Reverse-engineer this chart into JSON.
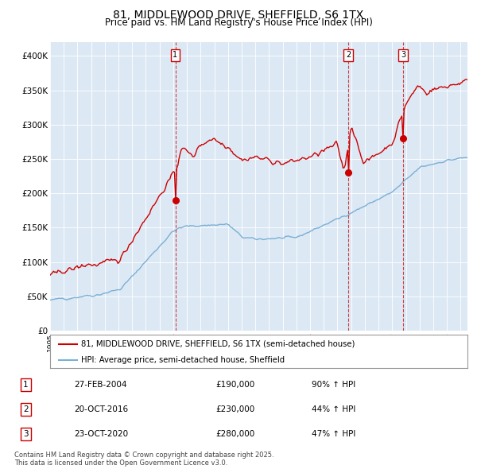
{
  "title": "81, MIDDLEWOOD DRIVE, SHEFFIELD, S6 1TX",
  "subtitle": "Price paid vs. HM Land Registry's House Price Index (HPI)",
  "title_fontsize": 10,
  "subtitle_fontsize": 8.5,
  "plot_bg_color": "#dce9f5",
  "red_line_color": "#cc0000",
  "blue_line_color": "#7bafd4",
  "ylim": [
    0,
    420000
  ],
  "yticks": [
    0,
    50000,
    100000,
    150000,
    200000,
    250000,
    300000,
    350000,
    400000
  ],
  "ytick_labels": [
    "£0",
    "£50K",
    "£100K",
    "£150K",
    "£200K",
    "£250K",
    "£300K",
    "£350K",
    "£400K"
  ],
  "transactions": [
    {
      "label": "1",
      "date": "27-FEB-2004",
      "price": 190000,
      "pct": "90%",
      "x_year": 2004.15
    },
    {
      "label": "2",
      "date": "20-OCT-2016",
      "price": 230000,
      "pct": "44%",
      "x_year": 2016.8
    },
    {
      "label": "3",
      "date": "23-OCT-2020",
      "price": 280000,
      "pct": "47%",
      "x_year": 2020.8
    }
  ],
  "legend_label_red": "81, MIDDLEWOOD DRIVE, SHEFFIELD, S6 1TX (semi-detached house)",
  "legend_label_blue": "HPI: Average price, semi-detached house, Sheffield",
  "footer": "Contains HM Land Registry data © Crown copyright and database right 2025.\nThis data is licensed under the Open Government Licence v3.0.",
  "xmin": 1995.0,
  "xmax": 2025.5
}
